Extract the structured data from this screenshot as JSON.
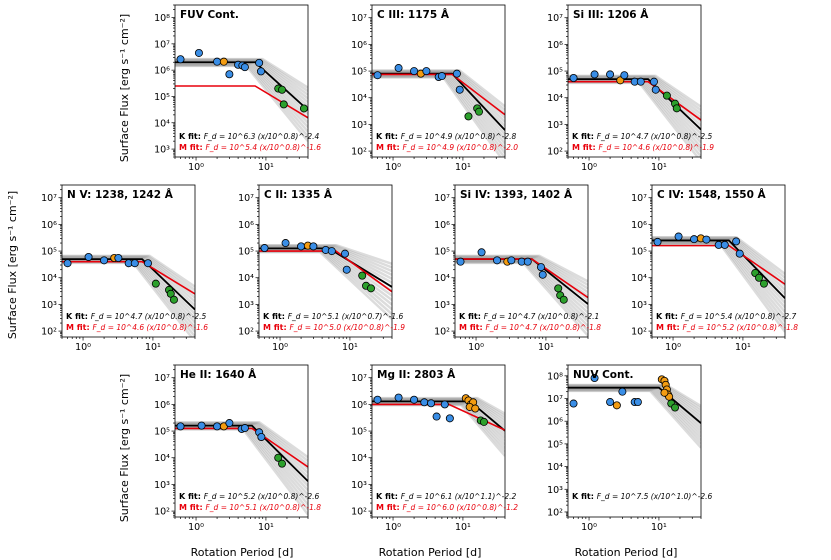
{
  "figure": {
    "ylabel": "Surface Flux [erg s⁻¹ cm⁻²]",
    "xlabel": "Rotation Period [d]",
    "colors": {
      "K": "#000000",
      "M": "#e8000b",
      "blue": "#3a8ee6",
      "orange": "#f39c12",
      "green": "#2ca02c"
    }
  },
  "chart_data": [
    {
      "type": "scatter",
      "title": "FUV Cont.",
      "xlim": [
        0.5,
        40
      ],
      "ylim": [
        500,
        300000000
      ],
      "yticks": [
        1000,
        10000,
        100000,
        1000000,
        10000000,
        100000000
      ],
      "xticks": [
        1,
        10
      ],
      "points": [
        {
          "x": 0.6,
          "y": 2600000,
          "c": "blue"
        },
        {
          "x": 1.1,
          "y": 4500000,
          "c": "blue"
        },
        {
          "x": 2.0,
          "y": 2100000,
          "c": "blue"
        },
        {
          "x": 2.5,
          "y": 2100000,
          "c": "orange"
        },
        {
          "x": 3.0,
          "y": 700000,
          "c": "blue"
        },
        {
          "x": 4.0,
          "y": 1600000,
          "c": "blue"
        },
        {
          "x": 4.6,
          "y": 1500000,
          "c": "blue"
        },
        {
          "x": 5.0,
          "y": 1300000,
          "c": "blue"
        },
        {
          "x": 8.0,
          "y": 1900000,
          "c": "blue"
        },
        {
          "x": 8.5,
          "y": 900000,
          "c": "blue"
        },
        {
          "x": 15,
          "y": 200000,
          "c": "green"
        },
        {
          "x": 17,
          "y": 180000,
          "c": "green"
        },
        {
          "x": 18,
          "y": 50000,
          "c": "green"
        },
        {
          "x": 35,
          "y": 35000,
          "c": "green"
        }
      ],
      "k_fit": {
        "sat": 2000000,
        "knee": 7,
        "slope": -2.4
      },
      "m_fit": {
        "sat": 250000,
        "knee": 7,
        "slope": -1.6
      },
      "k_label": "K fit:",
      "k_eq": "F_d = 10^6.3 (x/10^0.8)^-2.4",
      "m_label": "M fit:",
      "m_eq": "F_d = 10^5.4 (x/10^0.8)^-1.6"
    },
    {
      "type": "scatter",
      "title": "C III: 1175 Å",
      "xlim": [
        0.5,
        40
      ],
      "ylim": [
        60,
        30000000
      ],
      "yticks": [
        100,
        1000,
        10000,
        100000,
        1000000,
        10000000
      ],
      "xticks": [
        1,
        10
      ],
      "points": [
        {
          "x": 0.6,
          "y": 70000,
          "c": "blue"
        },
        {
          "x": 1.2,
          "y": 130000,
          "c": "blue"
        },
        {
          "x": 2.0,
          "y": 100000,
          "c": "blue"
        },
        {
          "x": 2.5,
          "y": 80000,
          "c": "orange"
        },
        {
          "x": 3.0,
          "y": 100000,
          "c": "blue"
        },
        {
          "x": 4.5,
          "y": 60000,
          "c": "blue"
        },
        {
          "x": 5.0,
          "y": 65000,
          "c": "blue"
        },
        {
          "x": 8.2,
          "y": 80000,
          "c": "blue"
        },
        {
          "x": 9.0,
          "y": 20000,
          "c": "blue"
        },
        {
          "x": 16,
          "y": 4000,
          "c": "green"
        },
        {
          "x": 17,
          "y": 3000,
          "c": "green"
        },
        {
          "x": 12,
          "y": 2000,
          "c": "green"
        }
      ],
      "k_fit": {
        "sat": 80000,
        "knee": 7,
        "slope": -2.8
      },
      "m_fit": {
        "sat": 75000,
        "knee": 7,
        "slope": -2.0
      },
      "k_label": "K fit:",
      "k_eq": "F_d = 10^4.9 (x/10^0.8)^-2.8",
      "m_label": "M fit:",
      "m_eq": "F_d = 10^4.9 (x/10^0.8)^-2.0"
    },
    {
      "type": "scatter",
      "title": "Si III: 1206 Å",
      "xlim": [
        0.5,
        40
      ],
      "ylim": [
        60,
        30000000
      ],
      "yticks": [
        100,
        1000,
        10000,
        100000,
        1000000,
        10000000
      ],
      "xticks": [
        1,
        10
      ],
      "points": [
        {
          "x": 0.6,
          "y": 55000,
          "c": "blue"
        },
        {
          "x": 1.2,
          "y": 75000,
          "c": "blue"
        },
        {
          "x": 2.0,
          "y": 75000,
          "c": "blue"
        },
        {
          "x": 2.8,
          "y": 45000,
          "c": "orange"
        },
        {
          "x": 3.2,
          "y": 70000,
          "c": "blue"
        },
        {
          "x": 4.5,
          "y": 40000,
          "c": "blue"
        },
        {
          "x": 5.5,
          "y": 40000,
          "c": "blue"
        },
        {
          "x": 8.5,
          "y": 40000,
          "c": "blue"
        },
        {
          "x": 9.0,
          "y": 20000,
          "c": "blue"
        },
        {
          "x": 13,
          "y": 12000,
          "c": "green"
        },
        {
          "x": 17,
          "y": 6000,
          "c": "green"
        },
        {
          "x": 18,
          "y": 4000,
          "c": "green"
        }
      ],
      "k_fit": {
        "sat": 50000,
        "knee": 7,
        "slope": -2.5
      },
      "m_fit": {
        "sat": 40000,
        "knee": 7,
        "slope": -1.9
      },
      "k_label": "K fit:",
      "k_eq": "F_d = 10^4.7 (x/10^0.8)^-2.5",
      "m_label": "M fit:",
      "m_eq": "F_d = 10^4.6 (x/10^0.8)^-1.9"
    },
    {
      "type": "scatter",
      "title": "N V: 1238, 1242 Å",
      "xlim": [
        0.5,
        40
      ],
      "ylim": [
        60,
        30000000
      ],
      "yticks": [
        100,
        1000,
        10000,
        100000,
        1000000,
        10000000
      ],
      "xticks": [
        1,
        10
      ],
      "points": [
        {
          "x": 0.6,
          "y": 35000,
          "c": "blue"
        },
        {
          "x": 1.2,
          "y": 60000,
          "c": "blue"
        },
        {
          "x": 2.0,
          "y": 45000,
          "c": "blue"
        },
        {
          "x": 2.8,
          "y": 55000,
          "c": "orange"
        },
        {
          "x": 3.2,
          "y": 55000,
          "c": "blue"
        },
        {
          "x": 4.5,
          "y": 35000,
          "c": "blue"
        },
        {
          "x": 5.5,
          "y": 35000,
          "c": "blue"
        },
        {
          "x": 8.5,
          "y": 35000,
          "c": "blue"
        },
        {
          "x": 11,
          "y": 6000,
          "c": "green"
        },
        {
          "x": 17,
          "y": 3500,
          "c": "green"
        },
        {
          "x": 18,
          "y": 2500,
          "c": "green"
        },
        {
          "x": 20,
          "y": 1500,
          "c": "green"
        }
      ],
      "k_fit": {
        "sat": 50000,
        "knee": 7,
        "slope": -2.5
      },
      "m_fit": {
        "sat": 40000,
        "knee": 7,
        "slope": -1.6
      },
      "k_label": "K fit:",
      "k_eq": "F_d = 10^4.7 (x/10^0.8)^-2.5",
      "m_label": "M fit:",
      "m_eq": "F_d = 10^4.6 (x/10^0.8)^-1.6"
    },
    {
      "type": "scatter",
      "title": "C II: 1335 Å",
      "xlim": [
        0.5,
        40
      ],
      "ylim": [
        60,
        30000000
      ],
      "yticks": [
        100,
        1000,
        10000,
        100000,
        1000000,
        10000000
      ],
      "xticks": [
        1,
        10
      ],
      "points": [
        {
          "x": 0.6,
          "y": 130000,
          "c": "blue"
        },
        {
          "x": 1.2,
          "y": 200000,
          "c": "blue"
        },
        {
          "x": 2.0,
          "y": 150000,
          "c": "blue"
        },
        {
          "x": 2.5,
          "y": 160000,
          "c": "orange"
        },
        {
          "x": 3.0,
          "y": 150000,
          "c": "blue"
        },
        {
          "x": 4.5,
          "y": 110000,
          "c": "blue"
        },
        {
          "x": 5.5,
          "y": 100000,
          "c": "blue"
        },
        {
          "x": 8.5,
          "y": 80000,
          "c": "blue"
        },
        {
          "x": 9.0,
          "y": 20000,
          "c": "blue"
        },
        {
          "x": 15,
          "y": 12000,
          "c": "green"
        },
        {
          "x": 17,
          "y": 5000,
          "c": "green"
        },
        {
          "x": 20,
          "y": 4000,
          "c": "green"
        }
      ],
      "k_fit": {
        "sat": 126000,
        "knee": 5,
        "slope": -1.6
      },
      "m_fit": {
        "sat": 100000,
        "knee": 6.3,
        "slope": -1.9
      },
      "k_label": "K fit:",
      "k_eq": "F_d = 10^5.1 (x/10^0.7)^-1.6",
      "m_label": "M fit:",
      "m_eq": "F_d = 10^5.0 (x/10^0.8)^-1.9"
    },
    {
      "type": "scatter",
      "title": "Si IV: 1393, 1402 Å",
      "xlim": [
        0.5,
        40
      ],
      "ylim": [
        60,
        30000000
      ],
      "yticks": [
        100,
        1000,
        10000,
        100000,
        1000000,
        10000000
      ],
      "xticks": [
        1,
        10
      ],
      "points": [
        {
          "x": 0.6,
          "y": 40000,
          "c": "blue"
        },
        {
          "x": 1.2,
          "y": 90000,
          "c": "blue"
        },
        {
          "x": 2.0,
          "y": 45000,
          "c": "blue"
        },
        {
          "x": 2.8,
          "y": 40000,
          "c": "orange"
        },
        {
          "x": 3.2,
          "y": 45000,
          "c": "blue"
        },
        {
          "x": 4.5,
          "y": 40000,
          "c": "blue"
        },
        {
          "x": 5.5,
          "y": 40000,
          "c": "blue"
        },
        {
          "x": 8.5,
          "y": 25000,
          "c": "blue"
        },
        {
          "x": 9.0,
          "y": 13000,
          "c": "blue"
        },
        {
          "x": 15,
          "y": 4000,
          "c": "green"
        },
        {
          "x": 16,
          "y": 2200,
          "c": "green"
        },
        {
          "x": 18,
          "y": 1500,
          "c": "green"
        }
      ],
      "k_fit": {
        "sat": 50000,
        "knee": 6.3,
        "slope": -2.1
      },
      "m_fit": {
        "sat": 50000,
        "knee": 6.3,
        "slope": -1.8
      },
      "k_label": "K fit:",
      "k_eq": "F_d = 10^4.7 (x/10^0.8)^-2.1",
      "m_label": "M fit:",
      "m_eq": "F_d = 10^4.7 (x/10^0.8)^-1.8"
    },
    {
      "type": "scatter",
      "title": "C IV: 1548, 1550 Å",
      "xlim": [
        0.5,
        40
      ],
      "ylim": [
        60,
        30000000
      ],
      "yticks": [
        100,
        1000,
        10000,
        100000,
        1000000,
        10000000
      ],
      "xticks": [
        1,
        10
      ],
      "points": [
        {
          "x": 0.6,
          "y": 220000,
          "c": "blue"
        },
        {
          "x": 1.2,
          "y": 350000,
          "c": "blue"
        },
        {
          "x": 2.0,
          "y": 280000,
          "c": "blue"
        },
        {
          "x": 2.5,
          "y": 300000,
          "c": "orange"
        },
        {
          "x": 3.0,
          "y": 270000,
          "c": "blue"
        },
        {
          "x": 4.5,
          "y": 170000,
          "c": "blue"
        },
        {
          "x": 5.5,
          "y": 170000,
          "c": "blue"
        },
        {
          "x": 8.0,
          "y": 230000,
          "c": "blue"
        },
        {
          "x": 9.0,
          "y": 80000,
          "c": "blue"
        },
        {
          "x": 15,
          "y": 15000,
          "c": "green"
        },
        {
          "x": 17,
          "y": 10000,
          "c": "green"
        },
        {
          "x": 20,
          "y": 6000,
          "c": "green"
        }
      ],
      "k_fit": {
        "sat": 250000,
        "knee": 6.3,
        "slope": -2.7
      },
      "m_fit": {
        "sat": 160000,
        "knee": 6.3,
        "slope": -1.8
      },
      "k_label": "K fit:",
      "k_eq": "F_d = 10^5.4 (x/10^0.8)^-2.7",
      "m_label": "M fit:",
      "m_eq": "F_d = 10^5.2 (x/10^0.8)^-1.8"
    },
    {
      "type": "scatter",
      "title": "He II: 1640 Å",
      "xlim": [
        0.5,
        40
      ],
      "ylim": [
        60,
        30000000
      ],
      "yticks": [
        100,
        1000,
        10000,
        100000,
        1000000,
        10000000
      ],
      "xticks": [
        1,
        10
      ],
      "points": [
        {
          "x": 0.6,
          "y": 150000,
          "c": "blue"
        },
        {
          "x": 1.2,
          "y": 160000,
          "c": "blue"
        },
        {
          "x": 2.0,
          "y": 150000,
          "c": "blue"
        },
        {
          "x": 2.5,
          "y": 150000,
          "c": "orange"
        },
        {
          "x": 3.0,
          "y": 200000,
          "c": "blue"
        },
        {
          "x": 4.5,
          "y": 120000,
          "c": "blue"
        },
        {
          "x": 5.0,
          "y": 130000,
          "c": "blue"
        },
        {
          "x": 8.0,
          "y": 90000,
          "c": "blue"
        },
        {
          "x": 8.6,
          "y": 60000,
          "c": "blue"
        },
        {
          "x": 15,
          "y": 10000,
          "c": "green"
        },
        {
          "x": 17,
          "y": 6000,
          "c": "green"
        }
      ],
      "k_fit": {
        "sat": 160000,
        "knee": 6.3,
        "slope": -2.6
      },
      "m_fit": {
        "sat": 126000,
        "knee": 6.3,
        "slope": -1.8
      },
      "k_label": "K fit:",
      "k_eq": "F_d = 10^5.2 (x/10^0.8)^-2.6",
      "m_label": "M fit:",
      "m_eq": "F_d = 10^5.1 (x/10^0.8)^-1.8"
    },
    {
      "type": "scatter",
      "title": "Mg II: 2803 Å",
      "xlim": [
        0.5,
        40
      ],
      "ylim": [
        60,
        30000000
      ],
      "yticks": [
        100,
        1000,
        10000,
        100000,
        1000000,
        10000000
      ],
      "xticks": [
        1,
        10
      ],
      "points": [
        {
          "x": 0.6,
          "y": 1500000,
          "c": "blue"
        },
        {
          "x": 1.2,
          "y": 1800000,
          "c": "blue"
        },
        {
          "x": 2.0,
          "y": 1500000,
          "c": "blue"
        },
        {
          "x": 2.8,
          "y": 1200000,
          "c": "blue"
        },
        {
          "x": 3.5,
          "y": 1100000,
          "c": "blue"
        },
        {
          "x": 4.2,
          "y": 350000,
          "c": "blue"
        },
        {
          "x": 5.5,
          "y": 1000000,
          "c": "blue"
        },
        {
          "x": 6.5,
          "y": 300000,
          "c": "blue"
        },
        {
          "x": 11,
          "y": 1700000,
          "c": "orange"
        },
        {
          "x": 12,
          "y": 1400000,
          "c": "orange"
        },
        {
          "x": 13,
          "y": 1000000,
          "c": "orange"
        },
        {
          "x": 14,
          "y": 1200000,
          "c": "orange"
        },
        {
          "x": 12.5,
          "y": 800000,
          "c": "orange"
        },
        {
          "x": 15,
          "y": 700000,
          "c": "orange"
        },
        {
          "x": 18,
          "y": 250000,
          "c": "green"
        },
        {
          "x": 20,
          "y": 220000,
          "c": "green"
        }
      ],
      "k_fit": {
        "sat": 1300000,
        "knee": 12.6,
        "slope": -2.2
      },
      "m_fit": {
        "sat": 1000000,
        "knee": 6.3,
        "slope": -1.2
      },
      "k_label": "K fit:",
      "k_eq": "F_d = 10^6.1 (x/10^1.1)^-2.2",
      "m_label": "M fit:",
      "m_eq": "F_d = 10^6.0 (x/10^0.8)^-1.2"
    },
    {
      "type": "scatter",
      "title": "NUV Cont.",
      "xlim": [
        0.5,
        40
      ],
      "ylim": [
        60,
        300000000
      ],
      "yticks": [
        100,
        1000,
        10000,
        100000,
        1000000,
        10000000,
        100000000
      ],
      "xticks": [
        1,
        10
      ],
      "points": [
        {
          "x": 0.6,
          "y": 6000000,
          "c": "blue"
        },
        {
          "x": 1.2,
          "y": 80000000,
          "c": "blue"
        },
        {
          "x": 2.0,
          "y": 7000000,
          "c": "blue"
        },
        {
          "x": 3.0,
          "y": 20000000,
          "c": "blue"
        },
        {
          "x": 4.5,
          "y": 7000000,
          "c": "blue"
        },
        {
          "x": 5.0,
          "y": 7000000,
          "c": "blue"
        },
        {
          "x": 2.5,
          "y": 5000000,
          "c": "orange"
        },
        {
          "x": 11,
          "y": 70000000,
          "c": "orange"
        },
        {
          "x": 12,
          "y": 60000000,
          "c": "orange"
        },
        {
          "x": 12.5,
          "y": 40000000,
          "c": "orange"
        },
        {
          "x": 13,
          "y": 25000000,
          "c": "orange"
        },
        {
          "x": 13.5,
          "y": 15000000,
          "c": "orange"
        },
        {
          "x": 14,
          "y": 12000000,
          "c": "orange"
        },
        {
          "x": 12,
          "y": 18000000,
          "c": "orange"
        },
        {
          "x": 15,
          "y": 6000000,
          "c": "green"
        },
        {
          "x": 17,
          "y": 4000000,
          "c": "green"
        }
      ],
      "k_fit": {
        "sat": 30000000,
        "knee": 10,
        "slope": -2.6
      },
      "m_fit": null,
      "k_label": "K fit:",
      "k_eq": "F_d = 10^7.5 (x/10^1.0)^-2.6",
      "m_label": "",
      "m_eq": ""
    }
  ]
}
